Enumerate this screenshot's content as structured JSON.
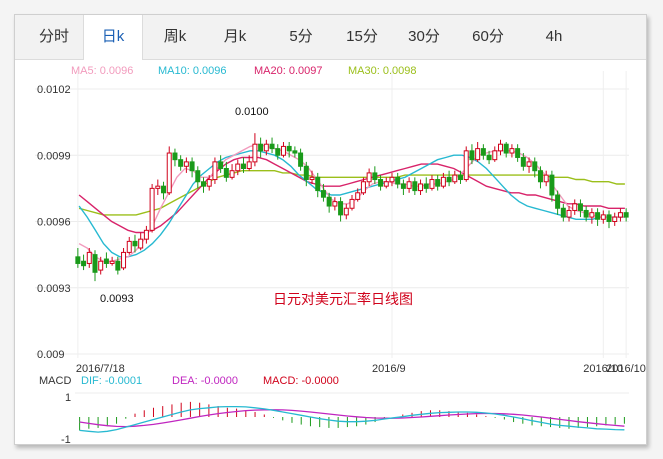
{
  "tabs": [
    {
      "label": "分时",
      "active": false
    },
    {
      "label": "日k",
      "active": true
    },
    {
      "label": "周k",
      "active": false
    },
    {
      "label": "月k",
      "active": false
    },
    {
      "label": "5分",
      "active": false
    },
    {
      "label": "15分",
      "active": false
    },
    {
      "label": "30分",
      "active": false
    },
    {
      "label": "60分",
      "active": false
    },
    {
      "label": "4h",
      "active": false
    }
  ],
  "ma_legend": {
    "ma5": "MA5: 0.0096",
    "ma10": "MA10: 0.0096",
    "ma20": "MA20: 0.0097",
    "ma30": "MA30: 0.0098"
  },
  "macd_legend": {
    "label": "MACD",
    "dif": "DIF: -0.0001",
    "dea": "DEA: -0.0000",
    "macd": "MACD: -0.0000"
  },
  "colors": {
    "up": "#d0021b",
    "down": "#1a9a1a",
    "ma5": "#f29bbd",
    "ma10": "#27b9d1",
    "ma20": "#d8236a",
    "ma30": "#9bbf1a",
    "dif": "#27b9d1",
    "dea": "#c026c0",
    "watermark": "#d0021b"
  },
  "chart_data": {
    "type": "candlestick",
    "title": "日元对美元汇率日线图",
    "y_axis": {
      "ticks": [
        "0.0102",
        "0.0099",
        "0.0096",
        "0.0093",
        "0.009"
      ],
      "range": [
        0.009,
        0.0102
      ]
    },
    "x_axis": {
      "labels": [
        "2016/7/18",
        "2016/9",
        "2016/10",
        "2016/10/18"
      ],
      "label_index": [
        0,
        55,
        92,
        108
      ]
    },
    "annotations": {
      "high": "0.0100",
      "low": "0.0093"
    },
    "candles": [
      [
        0.00944,
        0.00941,
        0.00948,
        0.00939
      ],
      [
        0.00942,
        0.0094,
        0.00945,
        0.00938
      ],
      [
        0.00941,
        0.00946,
        0.00948,
        0.00939
      ],
      [
        0.00945,
        0.00937,
        0.00947,
        0.00933
      ],
      [
        0.00938,
        0.00942,
        0.00944,
        0.00936
      ],
      [
        0.00943,
        0.00941,
        0.00946,
        0.00939
      ],
      [
        0.00941,
        0.00942,
        0.00944,
        0.0094
      ],
      [
        0.00942,
        0.00938,
        0.00944,
        0.00936
      ],
      [
        0.00939,
        0.00946,
        0.00948,
        0.00938
      ],
      [
        0.00946,
        0.00951,
        0.00953,
        0.00945
      ],
      [
        0.00951,
        0.00949,
        0.00954,
        0.00946
      ],
      [
        0.00948,
        0.00952,
        0.00955,
        0.00947
      ],
      [
        0.00952,
        0.00956,
        0.00958,
        0.0095
      ],
      [
        0.00956,
        0.00975,
        0.00977,
        0.00955
      ],
      [
        0.00975,
        0.00976,
        0.00979,
        0.00972
      ],
      [
        0.00976,
        0.00973,
        0.00978,
        0.0097
      ],
      [
        0.00973,
        0.00991,
        0.00994,
        0.00972
      ],
      [
        0.00991,
        0.00988,
        0.00993,
        0.00985
      ],
      [
        0.00988,
        0.00985,
        0.0099,
        0.00983
      ],
      [
        0.00985,
        0.00987,
        0.00989,
        0.00982
      ],
      [
        0.00987,
        0.00983,
        0.00989,
        0.0098
      ],
      [
        0.00983,
        0.00978,
        0.00985,
        0.00975
      ],
      [
        0.00978,
        0.00976,
        0.0098,
        0.00973
      ],
      [
        0.00976,
        0.00979,
        0.00981,
        0.00974
      ],
      [
        0.00979,
        0.00987,
        0.00989,
        0.00977
      ],
      [
        0.00987,
        0.00984,
        0.0099,
        0.00982
      ],
      [
        0.00984,
        0.0098,
        0.00987,
        0.00978
      ],
      [
        0.0098,
        0.00983,
        0.00986,
        0.00979
      ],
      [
        0.00983,
        0.00986,
        0.00988,
        0.00981
      ],
      [
        0.00986,
        0.00984,
        0.00989,
        0.00982
      ],
      [
        0.00984,
        0.00987,
        0.0099,
        0.00983
      ],
      [
        0.00987,
        0.00995,
        0.01,
        0.00985
      ],
      [
        0.00995,
        0.00992,
        0.00998,
        0.00989
      ],
      [
        0.00992,
        0.00995,
        0.00997,
        0.0099
      ],
      [
        0.00995,
        0.00993,
        0.00998,
        0.00991
      ],
      [
        0.00993,
        0.0099,
        0.00995,
        0.00988
      ],
      [
        0.0099,
        0.00994,
        0.00996,
        0.00989
      ],
      [
        0.00994,
        0.00992,
        0.00996,
        0.00989
      ],
      [
        0.00992,
        0.00991,
        0.00994,
        0.00989
      ],
      [
        0.00991,
        0.00985,
        0.00993,
        0.00983
      ],
      [
        0.00985,
        0.00979,
        0.00987,
        0.00976
      ],
      [
        0.00979,
        0.0098,
        0.00983,
        0.00977
      ],
      [
        0.0098,
        0.00974,
        0.00982,
        0.00971
      ],
      [
        0.00974,
        0.00971,
        0.00977,
        0.00969
      ],
      [
        0.00971,
        0.00967,
        0.00973,
        0.00964
      ],
      [
        0.00967,
        0.00969,
        0.00971,
        0.00965
      ],
      [
        0.00969,
        0.00963,
        0.00971,
        0.0096
      ],
      [
        0.00963,
        0.00966,
        0.00968,
        0.00961
      ],
      [
        0.00966,
        0.0097,
        0.00972,
        0.00965
      ],
      [
        0.0097,
        0.00973,
        0.00975,
        0.00969
      ],
      [
        0.00973,
        0.00978,
        0.0098,
        0.00972
      ],
      [
        0.00978,
        0.00982,
        0.00984,
        0.00976
      ],
      [
        0.00982,
        0.00979,
        0.00985,
        0.00977
      ],
      [
        0.00979,
        0.00976,
        0.00981,
        0.00974
      ],
      [
        0.00976,
        0.00978,
        0.0098,
        0.00975
      ],
      [
        0.00978,
        0.0098,
        0.00982,
        0.00976
      ],
      [
        0.0098,
        0.00977,
        0.00982,
        0.00975
      ],
      [
        0.00977,
        0.00975,
        0.00979,
        0.00972
      ],
      [
        0.00975,
        0.00978,
        0.0098,
        0.00973
      ],
      [
        0.00978,
        0.00974,
        0.0098,
        0.00972
      ],
      [
        0.00974,
        0.00977,
        0.00979,
        0.00972
      ],
      [
        0.00977,
        0.00975,
        0.0098,
        0.00973
      ],
      [
        0.00975,
        0.00979,
        0.00981,
        0.00974
      ],
      [
        0.00979,
        0.00976,
        0.00981,
        0.00974
      ],
      [
        0.00976,
        0.0098,
        0.00982,
        0.00975
      ],
      [
        0.0098,
        0.00978,
        0.00983,
        0.00976
      ],
      [
        0.00978,
        0.00981,
        0.00983,
        0.00977
      ],
      [
        0.00981,
        0.00979,
        0.00983,
        0.00977
      ],
      [
        0.00979,
        0.00992,
        0.00994,
        0.00978
      ],
      [
        0.00992,
        0.00988,
        0.00995,
        0.00986
      ],
      [
        0.00988,
        0.00993,
        0.00996,
        0.00987
      ],
      [
        0.00993,
        0.0099,
        0.00995,
        0.00988
      ],
      [
        0.0099,
        0.00988,
        0.00992,
        0.00986
      ],
      [
        0.00988,
        0.00992,
        0.00994,
        0.00987
      ],
      [
        0.00992,
        0.00995,
        0.00997,
        0.0099
      ],
      [
        0.00995,
        0.00991,
        0.00996,
        0.00989
      ],
      [
        0.00991,
        0.00993,
        0.00995,
        0.00989
      ],
      [
        0.00993,
        0.00989,
        0.00995,
        0.00987
      ],
      [
        0.00989,
        0.00985,
        0.00991,
        0.00983
      ],
      [
        0.00985,
        0.00987,
        0.00989,
        0.00982
      ],
      [
        0.00987,
        0.00983,
        0.00989,
        0.0098
      ],
      [
        0.00983,
        0.00978,
        0.00985,
        0.00975
      ],
      [
        0.00978,
        0.00981,
        0.00983,
        0.00976
      ],
      [
        0.00981,
        0.00972,
        0.00983,
        0.00969
      ],
      [
        0.00972,
        0.00966,
        0.00974,
        0.00963
      ],
      [
        0.00966,
        0.00962,
        0.00968,
        0.0096
      ],
      [
        0.00962,
        0.00965,
        0.00967,
        0.0096
      ],
      [
        0.00965,
        0.00968,
        0.0097,
        0.00963
      ],
      [
        0.00968,
        0.00965,
        0.0097,
        0.00962
      ],
      [
        0.00965,
        0.00962,
        0.00967,
        0.0096
      ],
      [
        0.00962,
        0.00964,
        0.00966,
        0.00959
      ],
      [
        0.00964,
        0.00961,
        0.00966,
        0.00958
      ],
      [
        0.00961,
        0.00963,
        0.00965,
        0.00959
      ],
      [
        0.00963,
        0.0096,
        0.00965,
        0.00957
      ],
      [
        0.0096,
        0.00962,
        0.00964,
        0.00958
      ],
      [
        0.00962,
        0.00964,
        0.00966,
        0.0096
      ],
      [
        0.00964,
        0.00962,
        0.00966,
        0.0096
      ]
    ],
    "ma5": [
      0.0095,
      0.00948,
      0.00944,
      0.00942,
      0.00942,
      0.00943,
      0.00944,
      0.00947,
      0.00952,
      0.00958,
      0.00966,
      0.00973,
      0.0098,
      0.00984,
      0.00983,
      0.0098,
      0.0098,
      0.00984,
      0.00988,
      0.0099,
      0.00992,
      0.00994,
      0.00995,
      0.00994,
      0.00993,
      0.00992,
      0.0099,
      0.00988,
      0.00985,
      0.0098,
      0.00975,
      0.0097,
      0.00968,
      0.00968,
      0.0097,
      0.00974,
      0.00977,
      0.00978,
      0.00978,
      0.00977,
      0.00977,
      0.00976,
      0.00976,
      0.00977,
      0.00977,
      0.00978,
      0.00979,
      0.00982,
      0.00986,
      0.0099,
      0.00991,
      0.00992,
      0.00992,
      0.00992,
      0.00991,
      0.00989,
      0.00986,
      0.00982,
      0.00977,
      0.00972,
      0.00967,
      0.00965,
      0.00964,
      0.00963,
      0.00962,
      0.00962,
      0.00962,
      0.00962
    ],
    "ma10": [
      0.00967,
      0.00962,
      0.00956,
      0.0095,
      0.00946,
      0.00944,
      0.00944,
      0.00945,
      0.00947,
      0.0095,
      0.00954,
      0.00959,
      0.00965,
      0.00971,
      0.00977,
      0.00981,
      0.00984,
      0.00987,
      0.00989,
      0.0099,
      0.00991,
      0.00992,
      0.00992,
      0.00991,
      0.0099,
      0.00988,
      0.00985,
      0.00981,
      0.00978,
      0.00975,
      0.00973,
      0.00972,
      0.00972,
      0.00973,
      0.00974,
      0.00975,
      0.00976,
      0.00977,
      0.00978,
      0.00979,
      0.0098,
      0.00982,
      0.00984,
      0.00986,
      0.00988,
      0.00989,
      0.0099,
      0.0099,
      0.00989,
      0.00987,
      0.00984,
      0.0098,
      0.00976,
      0.00972,
      0.00969,
      0.00967,
      0.00966,
      0.00965,
      0.00964,
      0.00963,
      0.00962,
      0.00961,
      0.00961,
      0.00961,
      0.00962,
      0.00962,
      0.00962,
      0.00962
    ],
    "ma20": [
      0.00972,
      0.00969,
      0.00966,
      0.00963,
      0.0096,
      0.00958,
      0.00956,
      0.00955,
      0.00955,
      0.00956,
      0.00958,
      0.00961,
      0.00964,
      0.00968,
      0.00972,
      0.00976,
      0.0098,
      0.00983,
      0.00986,
      0.00988,
      0.00989,
      0.00989,
      0.00989,
      0.00988,
      0.00986,
      0.00984,
      0.00982,
      0.0098,
      0.00978,
      0.00977,
      0.00976,
      0.00976,
      0.00976,
      0.00977,
      0.00978,
      0.00979,
      0.0098,
      0.00981,
      0.00982,
      0.00983,
      0.00984,
      0.00985,
      0.00986,
      0.00986,
      0.00986,
      0.00985,
      0.00984,
      0.00982,
      0.0098,
      0.00978,
      0.00976,
      0.00975,
      0.00974,
      0.00973,
      0.00973,
      0.00972,
      0.00972,
      0.00971,
      0.0097,
      0.00969,
      0.00968,
      0.00968,
      0.00967,
      0.00967,
      0.00967,
      0.00966,
      0.00966,
      0.00966
    ],
    "ma30": [
      0.00966,
      0.00965,
      0.00964,
      0.00963,
      0.00963,
      0.00963,
      0.00963,
      0.00963,
      0.00964,
      0.00965,
      0.00966,
      0.00968,
      0.0097,
      0.00972,
      0.00974,
      0.00976,
      0.00978,
      0.0098,
      0.00981,
      0.00982,
      0.00983,
      0.00983,
      0.00983,
      0.00983,
      0.00983,
      0.00982,
      0.00982,
      0.00981,
      0.00981,
      0.0098,
      0.0098,
      0.0098,
      0.0098,
      0.0098,
      0.0098,
      0.0098,
      0.0098,
      0.0098,
      0.0098,
      0.0098,
      0.00981,
      0.00981,
      0.00981,
      0.00981,
      0.00981,
      0.00981,
      0.00981,
      0.00981,
      0.00981,
      0.00981,
      0.00981,
      0.00981,
      0.00981,
      0.00981,
      0.00981,
      0.00981,
      0.00981,
      0.00981,
      0.0098,
      0.0098,
      0.0098,
      0.00979,
      0.00979,
      0.00978,
      0.00978,
      0.00978,
      0.00977,
      0.00977
    ],
    "macd_axis": {
      "ticks": [
        "1",
        "-1"
      ]
    },
    "dif": [
      -0.8,
      -0.85,
      -0.9,
      -0.85,
      -0.75,
      -0.6,
      -0.45,
      -0.3,
      -0.15,
      0.0,
      0.15,
      0.3,
      0.42,
      0.5,
      0.55,
      0.6,
      0.62,
      0.62,
      0.6,
      0.55,
      0.48,
      0.4,
      0.3,
      0.2,
      0.1,
      0.0,
      -0.1,
      -0.18,
      -0.25,
      -0.28,
      -0.28,
      -0.25,
      -0.2,
      -0.12,
      -0.05,
      0.02,
      0.1,
      0.16,
      0.22,
      0.26,
      0.28,
      0.3,
      0.3,
      0.28,
      0.24,
      0.18,
      0.1,
      0.0,
      -0.1,
      -0.22,
      -0.32,
      -0.42,
      -0.5,
      -0.55,
      -0.6,
      -0.65,
      -0.7,
      -0.72,
      -0.75,
      -0.76
    ],
    "dea": [
      -0.3,
      -0.38,
      -0.46,
      -0.52,
      -0.56,
      -0.57,
      -0.55,
      -0.5,
      -0.44,
      -0.36,
      -0.27,
      -0.17,
      -0.07,
      0.03,
      0.12,
      0.2,
      0.27,
      0.33,
      0.38,
      0.41,
      0.43,
      0.43,
      0.42,
      0.39,
      0.35,
      0.3,
      0.24,
      0.18,
      0.12,
      0.06,
      0.01,
      -0.03,
      -0.06,
      -0.07,
      -0.07,
      -0.06,
      -0.03,
      0.0,
      0.04,
      0.08,
      0.12,
      0.15,
      0.18,
      0.2,
      0.21,
      0.21,
      0.19,
      0.16,
      0.12,
      0.06,
      0.0,
      -0.07,
      -0.14,
      -0.21,
      -0.28,
      -0.34,
      -0.4,
      -0.45,
      -0.5,
      -0.55
    ],
    "macd_bars": [
      -0.8,
      -0.7,
      -0.65,
      -0.55,
      -0.4,
      -0.1,
      0.2,
      0.4,
      0.55,
      0.65,
      0.75,
      0.85,
      0.9,
      0.85,
      0.75,
      0.65,
      0.55,
      0.5,
      0.4,
      0.3,
      0.15,
      -0.05,
      -0.2,
      -0.35,
      -0.45,
      -0.55,
      -0.6,
      -0.65,
      -0.65,
      -0.6,
      -0.55,
      -0.45,
      -0.3,
      -0.15,
      0.0,
      0.15,
      0.25,
      0.35,
      0.4,
      0.4,
      0.35,
      0.3,
      0.25,
      0.15,
      0.05,
      -0.05,
      -0.15,
      -0.3,
      -0.4,
      -0.5,
      -0.55,
      -0.6,
      -0.65,
      -0.7,
      -0.65,
      -0.6,
      -0.55,
      -0.5,
      -0.45,
      -0.4
    ]
  }
}
